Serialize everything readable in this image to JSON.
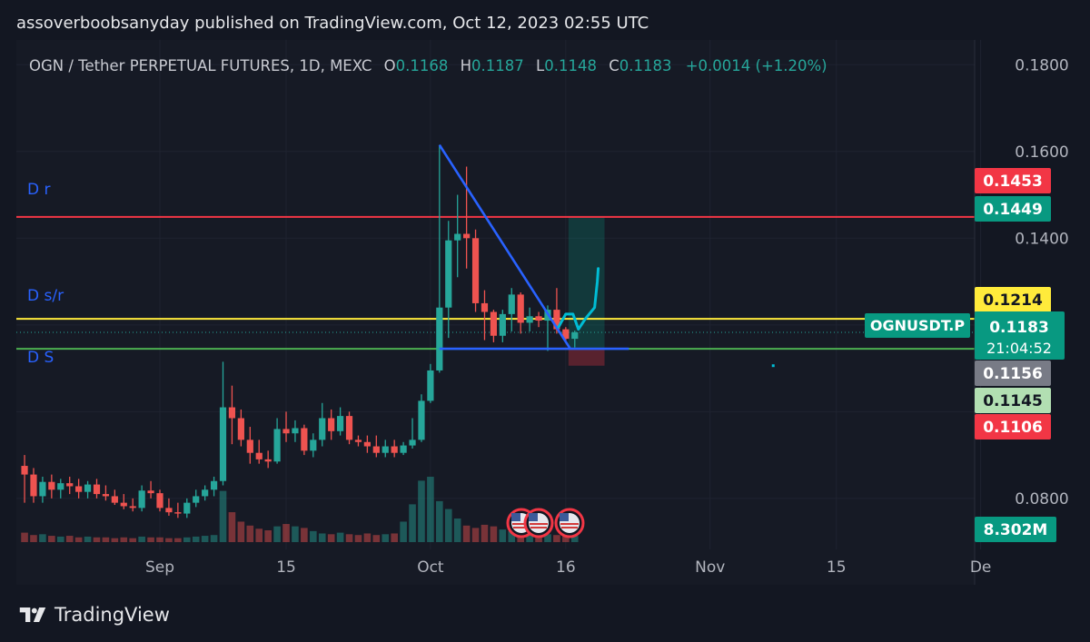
{
  "header": {
    "publish_text": "assoverboobsanyday published on TradingView.com, Oct 12, 2023 02:55 UTC"
  },
  "legend": {
    "symbol": "OGN / Tether PERPETUAL FUTURES, 1D, MEXC",
    "open_label": "O",
    "open": "0.1168",
    "high_label": "H",
    "high": "0.1187",
    "low_label": "L",
    "low": "0.1148",
    "close_label": "C",
    "close": "0.1183",
    "change": "+0.0014 (+1.20%)"
  },
  "footer": {
    "brand": "TradingView"
  },
  "colors": {
    "up": "#26a69a",
    "down": "#ef5350",
    "resistance": "#f23645",
    "support_resistance": "#ffeb3b",
    "trendline": "#2962ff",
    "drawing": "#00bcd4"
  },
  "chart_data": {
    "type": "candlestick",
    "ylim": [
      0.0695,
      0.1855
    ],
    "y_ticks": [
      "0.1800",
      "0.1600",
      "0.1400",
      "0.0800"
    ],
    "x_ticks": [
      {
        "label": "Sep",
        "day": 0
      },
      {
        "label": "15",
        "day": 14
      },
      {
        "label": "Oct",
        "day": 30
      },
      {
        "label": "16",
        "day": 45
      },
      {
        "label": "Nov",
        "day": 61
      },
      {
        "label": "15",
        "day": 75
      },
      {
        "label": "De",
        "day": 91
      }
    ],
    "candles": [
      {
        "day": -15,
        "o": 0.0875,
        "h": 0.09,
        "l": 0.079,
        "c": 0.0855
      },
      {
        "day": -14,
        "o": 0.0855,
        "h": 0.087,
        "l": 0.079,
        "c": 0.0805
      },
      {
        "day": -13,
        "o": 0.0805,
        "h": 0.085,
        "l": 0.079,
        "c": 0.0838
      },
      {
        "day": -12,
        "o": 0.0838,
        "h": 0.0855,
        "l": 0.08,
        "c": 0.082
      },
      {
        "day": -11,
        "o": 0.082,
        "h": 0.0845,
        "l": 0.08,
        "c": 0.0835
      },
      {
        "day": -10,
        "o": 0.0835,
        "h": 0.085,
        "l": 0.081,
        "c": 0.0828
      },
      {
        "day": -9,
        "o": 0.0828,
        "h": 0.0845,
        "l": 0.08,
        "c": 0.0815
      },
      {
        "day": -8,
        "o": 0.0815,
        "h": 0.084,
        "l": 0.08,
        "c": 0.0832
      },
      {
        "day": -7,
        "o": 0.0832,
        "h": 0.0845,
        "l": 0.08,
        "c": 0.081
      },
      {
        "day": -6,
        "o": 0.081,
        "h": 0.083,
        "l": 0.0795,
        "c": 0.0805
      },
      {
        "day": -5,
        "o": 0.0805,
        "h": 0.082,
        "l": 0.0785,
        "c": 0.079
      },
      {
        "day": -4,
        "o": 0.079,
        "h": 0.081,
        "l": 0.0775,
        "c": 0.0782
      },
      {
        "day": -3,
        "o": 0.0782,
        "h": 0.08,
        "l": 0.077,
        "c": 0.0778
      },
      {
        "day": -2,
        "o": 0.0778,
        "h": 0.083,
        "l": 0.077,
        "c": 0.0818
      },
      {
        "day": -1,
        "o": 0.0818,
        "h": 0.084,
        "l": 0.08,
        "c": 0.0812
      },
      {
        "day": 0,
        "o": 0.0812,
        "h": 0.082,
        "l": 0.077,
        "c": 0.0778
      },
      {
        "day": 1,
        "o": 0.0778,
        "h": 0.08,
        "l": 0.076,
        "c": 0.0768
      },
      {
        "day": 2,
        "o": 0.0768,
        "h": 0.079,
        "l": 0.0755,
        "c": 0.0765
      },
      {
        "day": 3,
        "o": 0.0765,
        "h": 0.08,
        "l": 0.0755,
        "c": 0.079
      },
      {
        "day": 4,
        "o": 0.079,
        "h": 0.082,
        "l": 0.078,
        "c": 0.0805
      },
      {
        "day": 5,
        "o": 0.0805,
        "h": 0.083,
        "l": 0.0795,
        "c": 0.082
      },
      {
        "day": 6,
        "o": 0.082,
        "h": 0.085,
        "l": 0.0805,
        "c": 0.084
      },
      {
        "day": 7,
        "o": 0.084,
        "h": 0.1115,
        "l": 0.083,
        "c": 0.101
      },
      {
        "day": 8,
        "o": 0.101,
        "h": 0.106,
        "l": 0.0925,
        "c": 0.0985
      },
      {
        "day": 9,
        "o": 0.0985,
        "h": 0.1005,
        "l": 0.092,
        "c": 0.0935
      },
      {
        "day": 10,
        "o": 0.0935,
        "h": 0.0965,
        "l": 0.088,
        "c": 0.0905
      },
      {
        "day": 11,
        "o": 0.0905,
        "h": 0.0935,
        "l": 0.088,
        "c": 0.089
      },
      {
        "day": 12,
        "o": 0.089,
        "h": 0.091,
        "l": 0.087,
        "c": 0.0885
      },
      {
        "day": 13,
        "o": 0.0885,
        "h": 0.0985,
        "l": 0.088,
        "c": 0.096
      },
      {
        "day": 14,
        "o": 0.096,
        "h": 0.1,
        "l": 0.093,
        "c": 0.095
      },
      {
        "day": 15,
        "o": 0.095,
        "h": 0.098,
        "l": 0.093,
        "c": 0.0962
      },
      {
        "day": 16,
        "o": 0.0962,
        "h": 0.097,
        "l": 0.09,
        "c": 0.091
      },
      {
        "day": 17,
        "o": 0.091,
        "h": 0.095,
        "l": 0.0895,
        "c": 0.0935
      },
      {
        "day": 18,
        "o": 0.0935,
        "h": 0.102,
        "l": 0.092,
        "c": 0.0985
      },
      {
        "day": 19,
        "o": 0.0985,
        "h": 0.1005,
        "l": 0.0935,
        "c": 0.0955
      },
      {
        "day": 20,
        "o": 0.0955,
        "h": 0.101,
        "l": 0.0945,
        "c": 0.099
      },
      {
        "day": 21,
        "o": 0.099,
        "h": 0.1,
        "l": 0.0925,
        "c": 0.0935
      },
      {
        "day": 22,
        "o": 0.0935,
        "h": 0.0945,
        "l": 0.092,
        "c": 0.093
      },
      {
        "day": 23,
        "o": 0.093,
        "h": 0.0945,
        "l": 0.0905,
        "c": 0.092
      },
      {
        "day": 24,
        "o": 0.092,
        "h": 0.0945,
        "l": 0.0895,
        "c": 0.0905
      },
      {
        "day": 25,
        "o": 0.0905,
        "h": 0.0935,
        "l": 0.0895,
        "c": 0.092
      },
      {
        "day": 26,
        "o": 0.092,
        "h": 0.0935,
        "l": 0.0895,
        "c": 0.0905
      },
      {
        "day": 27,
        "o": 0.0905,
        "h": 0.093,
        "l": 0.09,
        "c": 0.0922
      },
      {
        "day": 28,
        "o": 0.0922,
        "h": 0.0985,
        "l": 0.0915,
        "c": 0.0935
      },
      {
        "day": 29,
        "o": 0.0935,
        "h": 0.104,
        "l": 0.093,
        "c": 0.1025
      },
      {
        "day": 30,
        "o": 0.1025,
        "h": 0.111,
        "l": 0.102,
        "c": 0.1095
      },
      {
        "day": 31,
        "o": 0.1095,
        "h": 0.1615,
        "l": 0.109,
        "c": 0.124
      },
      {
        "day": 32,
        "o": 0.124,
        "h": 0.144,
        "l": 0.117,
        "c": 0.1395
      },
      {
        "day": 33,
        "o": 0.1395,
        "h": 0.15,
        "l": 0.131,
        "c": 0.141
      },
      {
        "day": 34,
        "o": 0.141,
        "h": 0.1565,
        "l": 0.133,
        "c": 0.14
      },
      {
        "day": 35,
        "o": 0.14,
        "h": 0.142,
        "l": 0.123,
        "c": 0.125
      },
      {
        "day": 36,
        "o": 0.125,
        "h": 0.128,
        "l": 0.1165,
        "c": 0.123
      },
      {
        "day": 37,
        "o": 0.123,
        "h": 0.1235,
        "l": 0.116,
        "c": 0.1175
      },
      {
        "day": 38,
        "o": 0.1175,
        "h": 0.1235,
        "l": 0.116,
        "c": 0.1225
      },
      {
        "day": 39,
        "o": 0.1225,
        "h": 0.1285,
        "l": 0.1185,
        "c": 0.127
      },
      {
        "day": 40,
        "o": 0.127,
        "h": 0.1275,
        "l": 0.118,
        "c": 0.1205
      },
      {
        "day": 41,
        "o": 0.1205,
        "h": 0.124,
        "l": 0.1185,
        "c": 0.122
      },
      {
        "day": 42,
        "o": 0.122,
        "h": 0.123,
        "l": 0.1195,
        "c": 0.121
      },
      {
        "day": 43,
        "o": 0.121,
        "h": 0.1245,
        "l": 0.114,
        "c": 0.1235
      },
      {
        "day": 44,
        "o": 0.1235,
        "h": 0.1285,
        "l": 0.118,
        "c": 0.119
      },
      {
        "day": 45,
        "o": 0.119,
        "h": 0.1195,
        "l": 0.116,
        "c": 0.1168
      },
      {
        "day": 46,
        "o": 0.1168,
        "h": 0.1187,
        "l": 0.1148,
        "c": 0.1183
      }
    ],
    "volume_axis_max": 8.302,
    "volumes": [
      1.2,
      0.9,
      1.0,
      0.8,
      0.7,
      0.8,
      0.6,
      0.7,
      0.6,
      0.6,
      0.5,
      0.6,
      0.5,
      0.7,
      0.6,
      0.6,
      0.5,
      0.5,
      0.6,
      0.7,
      0.8,
      0.9,
      6.5,
      3.8,
      2.6,
      2.1,
      1.7,
      1.5,
      2.0,
      2.3,
      2.0,
      1.8,
      1.4,
      1.1,
      1.0,
      1.2,
      1.0,
      0.9,
      1.1,
      0.9,
      1.0,
      1.1,
      2.6,
      4.8,
      7.8,
      8.3,
      5.2,
      4.2,
      3.0,
      2.1,
      1.8,
      2.2,
      2.0,
      1.6,
      1.4,
      1.3,
      1.6,
      1.1,
      1.0,
      0.9,
      0.9,
      0.8
    ],
    "levels": [
      {
        "label": "D r",
        "value": 0.1449,
        "color": "#f23645"
      },
      {
        "label": "D s/r",
        "value": 0.1214,
        "color": "#ffeb3b"
      },
      {
        "label": "D S",
        "value": 0.1145,
        "color": "#4caf50"
      }
    ],
    "trendline": {
      "from": {
        "day": 31,
        "price": 0.1615
      },
      "to": {
        "day": 45.5,
        "price": 0.1145
      }
    },
    "base_line": {
      "from_day": 31,
      "to_day": 52,
      "price": 0.1145
    },
    "drawn_path": [
      [
        44.2,
        0.1195
      ],
      [
        45,
        0.1225
      ],
      [
        45.8,
        0.1225
      ],
      [
        46.4,
        0.119
      ],
      [
        47.2,
        0.1215
      ],
      [
        48.2,
        0.124
      ],
      [
        48.5,
        0.13
      ],
      [
        48.6,
        0.133
      ]
    ],
    "position_box": {
      "from_day": 45.3,
      "to_day": 49.3,
      "entry": 0.1145,
      "target": 0.1449,
      "stop": 0.1106
    },
    "dot": {
      "day": 68,
      "price": 0.1106
    },
    "price_labels": [
      {
        "text": "0.1453",
        "value": 0.1453,
        "bg": "#f23645",
        "fg": "#ffffff"
      },
      {
        "text": "0.1449",
        "value": 0.1449,
        "bg": "#089981",
        "fg": "#ffffff"
      },
      {
        "text": "0.1214",
        "value": 0.1214,
        "bg": "#ffeb3b",
        "fg": "#131722"
      },
      {
        "text": "0.1156",
        "value": 0.1156,
        "bg": "#787b86",
        "fg": "#ffffff"
      },
      {
        "text": "0.1145",
        "value": 0.1145,
        "bg": "#b2dfb2",
        "fg": "#131722"
      },
      {
        "text": "0.1106",
        "value": 0.1106,
        "bg": "#f23645",
        "fg": "#ffffff"
      }
    ],
    "current_price": {
      "symbol": "OGNUSDT.P",
      "price": "0.1183",
      "countdown": "21:04:52",
      "value": 0.1183
    },
    "volume_label": "8.302M"
  }
}
